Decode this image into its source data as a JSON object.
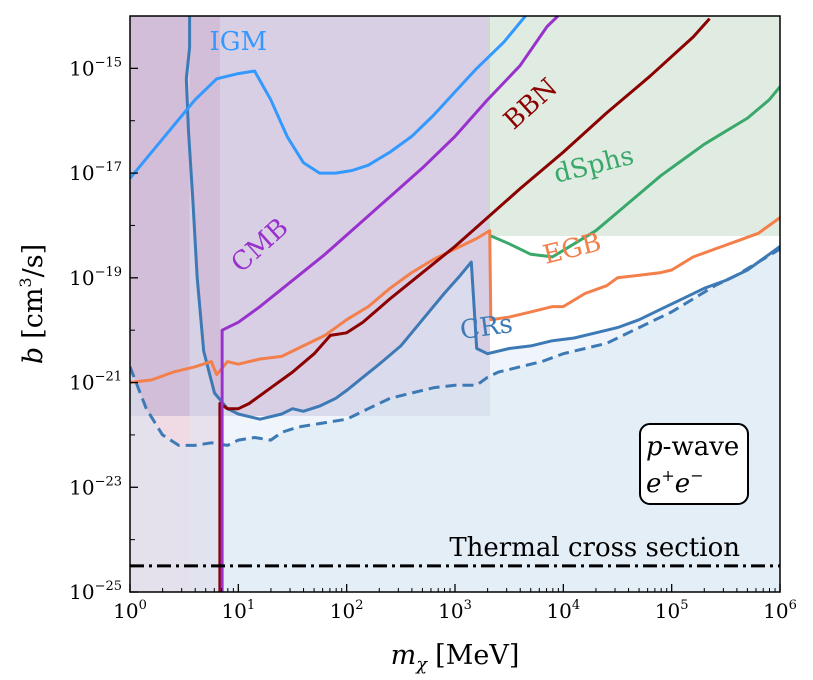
{
  "chart_data": {
    "type": "line",
    "title": "",
    "xlabel_symbol": "m",
    "xlabel_sub": "χ",
    "xlabel_unit": "[MeV]",
    "ylabel_symbol": "b",
    "ylabel_unit": "[cm",
    "ylabel_unit_exp": "3",
    "ylabel_unit_tail": "/s]",
    "xscale": "log",
    "yscale": "log",
    "xlim_log10": [
      0,
      6
    ],
    "ylim_log10": [
      -25,
      -14
    ],
    "x_ticks": [
      {
        "base": "10",
        "exp": "0",
        "log": 0
      },
      {
        "base": "10",
        "exp": "1",
        "log": 1
      },
      {
        "base": "10",
        "exp": "2",
        "log": 2
      },
      {
        "base": "10",
        "exp": "3",
        "log": 3
      },
      {
        "base": "10",
        "exp": "4",
        "log": 4
      },
      {
        "base": "10",
        "exp": "5",
        "log": 5
      },
      {
        "base": "10",
        "exp": "6",
        "log": 6
      }
    ],
    "y_ticks": [
      {
        "base": "10",
        "exp": "−15",
        "log": -15
      },
      {
        "base": "10",
        "exp": "−17",
        "log": -17
      },
      {
        "base": "10",
        "exp": "−19",
        "log": -19
      },
      {
        "base": "10",
        "exp": "−21",
        "log": -21
      },
      {
        "base": "10",
        "exp": "−23",
        "log": -23
      },
      {
        "base": "10",
        "exp": "−25",
        "log": -25
      }
    ],
    "series": [
      {
        "name": "CRs dashed",
        "color": "#3d7ab5",
        "dashed": true,
        "fill": "#dce8f3",
        "fill_opacity": 0.55,
        "points": [
          [
            0,
            -20.7
          ],
          [
            0.15,
            -21.5
          ],
          [
            0.3,
            -22.0
          ],
          [
            0.45,
            -22.2
          ],
          [
            0.6,
            -22.2
          ],
          [
            0.75,
            -22.15
          ],
          [
            0.9,
            -22.2
          ],
          [
            1.0,
            -22.1
          ],
          [
            1.15,
            -22.05
          ],
          [
            1.3,
            -22.1
          ],
          [
            1.4,
            -21.95
          ],
          [
            1.55,
            -21.85
          ],
          [
            1.7,
            -21.8
          ],
          [
            1.85,
            -21.75
          ],
          [
            2.0,
            -21.7
          ],
          [
            2.2,
            -21.5
          ],
          [
            2.4,
            -21.3
          ],
          [
            2.6,
            -21.2
          ],
          [
            2.8,
            -21.1
          ],
          [
            3.0,
            -21.05
          ],
          [
            3.2,
            -21.05
          ],
          [
            3.3,
            -20.9
          ],
          [
            3.4,
            -20.8
          ],
          [
            3.6,
            -20.7
          ],
          [
            3.8,
            -20.6
          ],
          [
            4.0,
            -20.45
          ],
          [
            4.2,
            -20.35
          ],
          [
            4.4,
            -20.25
          ],
          [
            4.6,
            -20.05
          ],
          [
            4.8,
            -19.85
          ],
          [
            5.0,
            -19.65
          ],
          [
            5.2,
            -19.4
          ],
          [
            5.4,
            -19.15
          ],
          [
            5.6,
            -18.95
          ],
          [
            5.8,
            -18.7
          ],
          [
            6.0,
            -18.45
          ]
        ]
      },
      {
        "name": "CRs",
        "label": "CRs",
        "color": "#3d7ab5",
        "fill": "#dce8f3",
        "fill_opacity": 0.45,
        "label_log": [
          3.3,
          -20.1
        ],
        "label_rot": -8,
        "points": [
          [
            0.55,
            -14
          ],
          [
            0.55,
            -14.6
          ],
          [
            0.52,
            -15.2
          ],
          [
            0.54,
            -16.2
          ],
          [
            0.58,
            -17.5
          ],
          [
            0.62,
            -19.0
          ],
          [
            0.68,
            -20.4
          ],
          [
            0.78,
            -21.2
          ],
          [
            0.9,
            -21.5
          ],
          [
            1.0,
            -21.6
          ],
          [
            1.2,
            -21.7
          ],
          [
            1.4,
            -21.6
          ],
          [
            1.5,
            -21.5
          ],
          [
            1.6,
            -21.55
          ],
          [
            1.75,
            -21.45
          ],
          [
            1.9,
            -21.3
          ],
          [
            2.0,
            -21.15
          ],
          [
            2.15,
            -20.9
          ],
          [
            2.3,
            -20.65
          ],
          [
            2.5,
            -20.3
          ],
          [
            2.7,
            -19.8
          ],
          [
            2.9,
            -19.3
          ],
          [
            3.05,
            -18.95
          ],
          [
            3.15,
            -18.7
          ],
          [
            3.2,
            -20.35
          ],
          [
            3.3,
            -20.45
          ],
          [
            3.5,
            -20.35
          ],
          [
            3.7,
            -20.3
          ],
          [
            3.9,
            -20.2
          ],
          [
            4.1,
            -20.15
          ],
          [
            4.3,
            -20.05
          ],
          [
            4.5,
            -19.95
          ],
          [
            4.7,
            -19.8
          ],
          [
            4.9,
            -19.6
          ],
          [
            5.1,
            -19.4
          ],
          [
            5.3,
            -19.2
          ],
          [
            5.5,
            -19.05
          ],
          [
            5.7,
            -18.85
          ],
          [
            5.9,
            -18.55
          ],
          [
            6.0,
            -18.4
          ]
        ]
      },
      {
        "name": "EGB",
        "label": "EGB",
        "color": "#f37f4b",
        "fill": "#fbe3d6",
        "fill_opacity": 0.0,
        "label_log": [
          4.1,
          -18.6
        ],
        "label_rot": -14,
        "points": [
          [
            0,
            -21.0
          ],
          [
            0.2,
            -20.95
          ],
          [
            0.4,
            -20.8
          ],
          [
            0.6,
            -20.7
          ],
          [
            0.75,
            -20.6
          ],
          [
            0.8,
            -20.85
          ],
          [
            0.9,
            -20.6
          ],
          [
            1.0,
            -20.65
          ],
          [
            1.2,
            -20.55
          ],
          [
            1.4,
            -20.5
          ],
          [
            1.6,
            -20.3
          ],
          [
            1.8,
            -20.1
          ],
          [
            2.0,
            -19.8
          ],
          [
            2.2,
            -19.55
          ],
          [
            2.4,
            -19.2
          ],
          [
            2.6,
            -18.9
          ],
          [
            2.8,
            -18.65
          ],
          [
            3.0,
            -18.45
          ],
          [
            3.2,
            -18.25
          ],
          [
            3.32,
            -18.1
          ],
          [
            3.33,
            -19.8
          ],
          [
            3.5,
            -19.75
          ],
          [
            3.7,
            -19.65
          ],
          [
            3.9,
            -19.55
          ],
          [
            4.0,
            -19.55
          ],
          [
            4.2,
            -19.3
          ],
          [
            4.4,
            -19.15
          ],
          [
            4.5,
            -19.0
          ],
          [
            4.7,
            -18.95
          ],
          [
            4.9,
            -18.9
          ],
          [
            5.0,
            -18.85
          ],
          [
            5.2,
            -18.6
          ],
          [
            5.4,
            -18.45
          ],
          [
            5.6,
            -18.3
          ],
          [
            5.8,
            -18.15
          ],
          [
            6.0,
            -17.85
          ]
        ]
      },
      {
        "name": "BBN",
        "label": "BBN",
        "color": "#8b0000",
        "fill": "#f1dede",
        "fill_opacity": 0.0,
        "label_log": [
          3.75,
          -15.8
        ],
        "label_rot": -42,
        "points": [
          [
            0.83,
            -25
          ],
          [
            0.83,
            -21.4
          ],
          [
            0.9,
            -21.5
          ],
          [
            1.0,
            -21.5
          ],
          [
            1.1,
            -21.4
          ],
          [
            1.3,
            -21.1
          ],
          [
            1.5,
            -20.8
          ],
          [
            1.7,
            -20.45
          ],
          [
            1.85,
            -20.1
          ],
          [
            2.0,
            -20.05
          ],
          [
            2.15,
            -19.85
          ],
          [
            2.4,
            -19.4
          ],
          [
            2.7,
            -18.9
          ],
          [
            3.0,
            -18.4
          ],
          [
            3.3,
            -17.85
          ],
          [
            3.6,
            -17.3
          ],
          [
            4.0,
            -16.6
          ],
          [
            4.4,
            -15.85
          ],
          [
            4.8,
            -15.15
          ],
          [
            5.2,
            -14.4
          ],
          [
            5.35,
            -14.05
          ]
        ]
      },
      {
        "name": "CMB",
        "label": "CMB",
        "color": "#9932cc",
        "fill": "#c8a8d8",
        "fill_opacity": 0.0,
        "label_log": [
          1.25,
          -18.5
        ],
        "label_rot": -42,
        "points": [
          [
            0.85,
            -25
          ],
          [
            0.85,
            -20.0
          ],
          [
            1.0,
            -19.85
          ],
          [
            1.2,
            -19.55
          ],
          [
            1.5,
            -19.05
          ],
          [
            1.8,
            -18.55
          ],
          [
            2.1,
            -18.0
          ],
          [
            2.4,
            -17.45
          ],
          [
            2.7,
            -16.9
          ],
          [
            3.0,
            -16.3
          ],
          [
            3.3,
            -15.6
          ],
          [
            3.6,
            -14.95
          ],
          [
            3.85,
            -14.2
          ],
          [
            3.95,
            -14.0
          ]
        ]
      },
      {
        "name": "dSphs",
        "label": "dSphs",
        "color": "#3aa86b",
        "fill": "#d6ede0",
        "fill_opacity": 0.0,
        "label_log": [
          4.3,
          -17.0
        ],
        "label_rot": -14,
        "points": [
          [
            3.33,
            -18.2
          ],
          [
            3.5,
            -18.35
          ],
          [
            3.7,
            -18.55
          ],
          [
            3.9,
            -18.6
          ],
          [
            4.1,
            -18.35
          ],
          [
            4.3,
            -18.1
          ],
          [
            4.5,
            -17.75
          ],
          [
            4.7,
            -17.4
          ],
          [
            4.9,
            -17.05
          ],
          [
            5.1,
            -16.75
          ],
          [
            5.3,
            -16.45
          ],
          [
            5.5,
            -16.2
          ],
          [
            5.7,
            -15.95
          ],
          [
            5.9,
            -15.6
          ],
          [
            6.0,
            -15.35
          ]
        ]
      },
      {
        "name": "IGM",
        "label": "IGM",
        "color": "#3399ff",
        "fill": "#cfdcec",
        "fill_opacity": 0.0,
        "label_log": [
          1.0,
          -14.65
        ],
        "label_rot": 0,
        "points": [
          [
            0,
            -17.1
          ],
          [
            0.2,
            -16.6
          ],
          [
            0.4,
            -16.1
          ],
          [
            0.6,
            -15.6
          ],
          [
            0.8,
            -15.2
          ],
          [
            1.0,
            -15.1
          ],
          [
            1.15,
            -15.05
          ],
          [
            1.3,
            -15.6
          ],
          [
            1.45,
            -16.3
          ],
          [
            1.6,
            -16.8
          ],
          [
            1.75,
            -17.0
          ],
          [
            1.9,
            -17.0
          ],
          [
            2.05,
            -16.95
          ],
          [
            2.2,
            -16.85
          ],
          [
            2.4,
            -16.6
          ],
          [
            2.6,
            -16.3
          ],
          [
            2.8,
            -15.9
          ],
          [
            3.0,
            -15.45
          ],
          [
            3.2,
            -15.0
          ],
          [
            3.45,
            -14.5
          ],
          [
            3.65,
            -14.0
          ]
        ]
      }
    ],
    "threshold": {
      "name": "Thermal cross section",
      "label": "Thermal cross section",
      "value_log": -24.5,
      "color": "#000000"
    },
    "legend_box": {
      "line1_symbol": "p",
      "line1_text": "-wave",
      "line2_base": "e",
      "line2_sup1": "+",
      "line2_mid": "e",
      "line2_sup2": "−",
      "position": "bottom-right"
    }
  }
}
